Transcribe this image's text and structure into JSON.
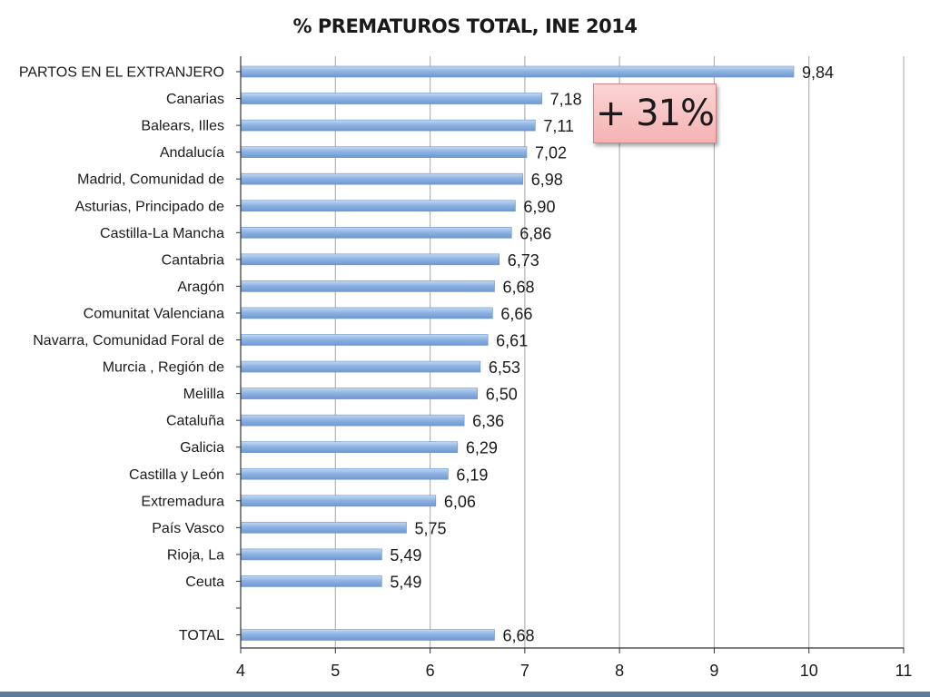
{
  "chart_data": {
    "type": "bar",
    "orientation": "horizontal",
    "title": "% PREMATUROS TOTAL, INE 2014",
    "xlabel": "",
    "ylabel": "",
    "xlim": [
      4,
      11
    ],
    "x_ticks": [
      "4",
      "5",
      "6",
      "7",
      "8",
      "9",
      "10",
      "11"
    ],
    "grid": "vertical",
    "categories": [
      "PARTOS EN EL EXTRANJERO",
      "Canarias",
      "Balears, Illes",
      "Andalucía",
      "Madrid, Comunidad de",
      "Asturias, Principado de",
      "Castilla-La Mancha",
      "Cantabria",
      "Aragón",
      "Comunitat Valenciana",
      "Navarra, Comunidad Foral de",
      "Murcia , Región de",
      "Melilla",
      "Cataluña",
      "Galicia",
      "Castilla y León",
      "Extremadura",
      "País Vasco",
      "Rioja, La",
      "Ceuta",
      "",
      "TOTAL"
    ],
    "values": [
      9.84,
      7.18,
      7.11,
      7.02,
      6.98,
      6.9,
      6.86,
      6.73,
      6.68,
      6.66,
      6.61,
      6.53,
      6.5,
      6.36,
      6.29,
      6.19,
      6.06,
      5.75,
      5.49,
      5.49,
      null,
      6.68
    ],
    "value_labels": [
      "9,84",
      "7,18",
      "7,11",
      "7,02",
      "6,98",
      "6,90",
      "6,86",
      "6,73",
      "6,68",
      "6,66",
      "6,61",
      "6,53",
      "6,50",
      "6,36",
      "6,29",
      "6,19",
      "6,06",
      "5,75",
      "5,49",
      "5,49",
      "",
      "6,68"
    ],
    "bar_color": "#8fb4e3",
    "annotation": "+ 31%"
  },
  "colors": {
    "bar_fill": "#8fb4e3",
    "bar_edge": "#6c95cc",
    "grid": "#b3b3b3",
    "callout_fill": "#f7c1c1",
    "callout_border": "#d08686",
    "bottom_rule": "#5f7a96"
  }
}
